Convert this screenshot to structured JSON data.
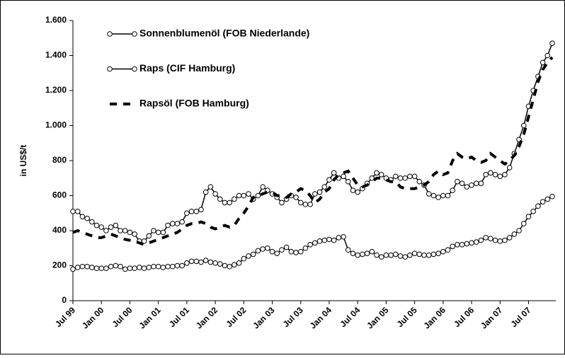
{
  "chart_data": {
    "type": "line",
    "ylabel": "in US$/t",
    "categories": [
      "Jul 99",
      null,
      null,
      null,
      null,
      null,
      "Jan 00",
      null,
      null,
      null,
      null,
      null,
      "Jul 00",
      null,
      null,
      null,
      null,
      null,
      "Jan 01",
      null,
      null,
      null,
      null,
      null,
      "Jul 01",
      null,
      null,
      null,
      null,
      null,
      "Jan 02",
      null,
      null,
      null,
      null,
      null,
      "Jul 02",
      null,
      null,
      null,
      null,
      null,
      "Jan 03",
      null,
      null,
      null,
      null,
      null,
      "Jul 03",
      null,
      null,
      null,
      null,
      null,
      "Jan 04",
      null,
      null,
      null,
      null,
      null,
      "Jul 04",
      null,
      null,
      null,
      null,
      null,
      "Jan 05",
      null,
      null,
      null,
      null,
      null,
      "Jul 05",
      null,
      null,
      null,
      null,
      null,
      "Jan 06",
      null,
      null,
      null,
      null,
      null,
      "Jul 06",
      null,
      null,
      null,
      null,
      null,
      "Jan 07",
      null,
      null,
      null,
      null,
      null,
      "Jul 07",
      null,
      null,
      null,
      null,
      null
    ],
    "series": [
      {
        "name": "Sonnenblumenöl (FOB Niederlande)",
        "color": "#000000",
        "marker": true,
        "values": [
          510,
          510,
          480,
          470,
          450,
          430,
          420,
          400,
          420,
          430,
          400,
          400,
          390,
          380,
          340,
          340,
          370,
          400,
          390,
          390,
          430,
          440,
          440,
          450,
          500,
          510,
          510,
          520,
          620,
          650,
          610,
          580,
          560,
          560,
          580,
          600,
          600,
          610,
          580,
          600,
          650,
          630,
          610,
          590,
          560,
          580,
          600,
          590,
          560,
          550,
          550,
          610,
          620,
          650,
          690,
          730,
          700,
          710,
          680,
          630,
          620,
          640,
          670,
          700,
          730,
          720,
          700,
          690,
          710,
          700,
          700,
          710,
          710,
          680,
          660,
          610,
          600,
          590,
          600,
          600,
          630,
          680,
          670,
          650,
          660,
          670,
          670,
          720,
          730,
          720,
          710,
          720,
          760,
          840,
          920,
          1000,
          1110,
          1200,
          1280,
          1360,
          1400,
          1470
        ]
      },
      {
        "name": "Raps (CIF Hamburg)",
        "color": "#000000",
        "marker": true,
        "values": [
          180,
          190,
          195,
          195,
          190,
          185,
          185,
          185,
          195,
          200,
          195,
          180,
          185,
          185,
          190,
          185,
          190,
          195,
          195,
          190,
          195,
          195,
          200,
          200,
          215,
          225,
          225,
          220,
          230,
          220,
          215,
          210,
          200,
          195,
          205,
          215,
          240,
          255,
          265,
          285,
          295,
          300,
          280,
          270,
          290,
          305,
          280,
          275,
          280,
          300,
          320,
          330,
          340,
          345,
          350,
          345,
          360,
          365,
          290,
          270,
          260,
          265,
          270,
          280,
          260,
          250,
          260,
          260,
          265,
          255,
          250,
          260,
          270,
          265,
          260,
          260,
          265,
          270,
          280,
          290,
          310,
          320,
          320,
          325,
          330,
          335,
          345,
          360,
          355,
          345,
          340,
          345,
          360,
          380,
          400,
          440,
          480,
          510,
          540,
          565,
          580,
          595
        ]
      },
      {
        "name": "Rapsöl (FOB Hamburg)",
        "color": "#000000",
        "dashed": true,
        "values": [
          390,
          400,
          390,
          380,
          370,
          360,
          360,
          370,
          380,
          370,
          360,
          350,
          345,
          340,
          330,
          320,
          330,
          340,
          350,
          360,
          370,
          380,
          390,
          410,
          430,
          440,
          440,
          450,
          440,
          420,
          410,
          420,
          430,
          420,
          430,
          470,
          500,
          540,
          590,
          600,
          610,
          620,
          620,
          600,
          600,
          590,
          610,
          620,
          640,
          630,
          600,
          560,
          580,
          620,
          640,
          690,
          720,
          730,
          740,
          700,
          660,
          650,
          660,
          680,
          700,
          700,
          690,
          680,
          680,
          650,
          640,
          640,
          640,
          650,
          660,
          680,
          720,
          740,
          720,
          730,
          800,
          840,
          820,
          810,
          820,
          800,
          790,
          800,
          840,
          820,
          800,
          780,
          800,
          830,
          880,
          950,
          1050,
          1150,
          1250,
          1320,
          1360,
          1390
        ]
      }
    ],
    "ylim": [
      0,
      1600
    ],
    "yticks": [
      0,
      200,
      400,
      600,
      800,
      {
        "value": 1000,
        "label": "1.000"
      },
      {
        "value": 1200,
        "label": "1.200"
      },
      {
        "value": 1400,
        "label": "1.400"
      },
      {
        "value": 1600,
        "label": "1.600"
      }
    ]
  }
}
